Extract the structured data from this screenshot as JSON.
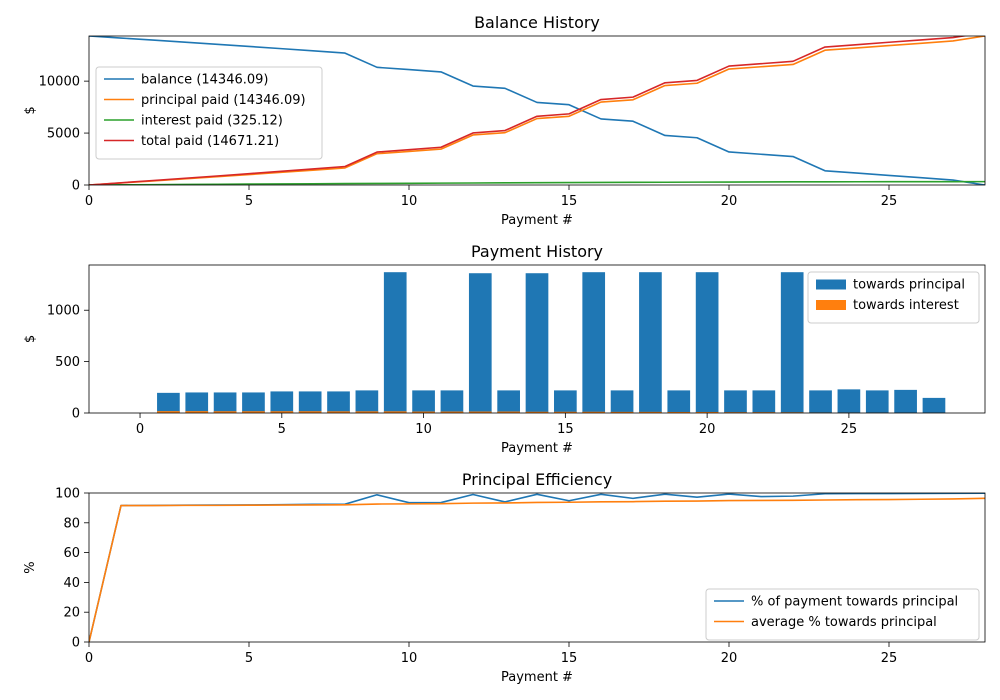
{
  "chart_data": [
    {
      "type": "line",
      "title": "Balance History",
      "xlabel": "Payment #",
      "ylabel": "$",
      "xlim": [
        0,
        28
      ],
      "ylim": [
        0,
        14346.09
      ],
      "xticks": [
        0,
        5,
        10,
        15,
        20,
        25
      ],
      "yticks": [
        0,
        5000,
        10000
      ],
      "legend_position": "center-left",
      "x": [
        0,
        1,
        2,
        3,
        4,
        5,
        6,
        7,
        8,
        9,
        10,
        11,
        12,
        13,
        14,
        15,
        16,
        17,
        18,
        19,
        20,
        21,
        22,
        23,
        24,
        25,
        26,
        27,
        28
      ],
      "series": [
        {
          "name": "balance (14346.09)",
          "color": "#1f77b4",
          "values": [
            14346.09,
            14150,
            13950,
            13750,
            13550,
            13340,
            13130,
            12920,
            12700,
            11330,
            11110,
            10890,
            9530,
            9310,
            7950,
            7730,
            6360,
            6140,
            4770,
            4550,
            3180,
            2960,
            2740,
            1370,
            1150,
            920,
            700,
            475,
            0
          ]
        },
        {
          "name": "principal paid (14346.09)",
          "color": "#ff7f0e",
          "values": [
            0,
            196,
            396,
            596,
            796,
            1006,
            1216,
            1426,
            1646,
            3016,
            3236,
            3456,
            4816,
            5036,
            6396,
            6616,
            7986,
            8206,
            9576,
            9796,
            11166,
            11386,
            11606,
            12976,
            13196,
            13426,
            13646,
            13871,
            14346.09
          ]
        },
        {
          "name": "interest paid (325.12)",
          "color": "#2ca02c",
          "values": [
            0,
            18,
            36,
            53,
            70,
            87,
            104,
            120,
            136,
            152,
            166,
            180,
            194,
            208,
            220,
            232,
            244,
            255,
            266,
            276,
            286,
            294,
            302,
            309,
            314,
            318,
            321,
            323,
            325.12
          ]
        },
        {
          "name": "total paid (14671.21)",
          "color": "#d62728",
          "values": [
            0,
            214,
            432,
            649,
            866,
            1093,
            1320,
            1546,
            1782,
            3168,
            3402,
            3636,
            5010,
            5244,
            6616,
            6848,
            8230,
            8461,
            9842,
            10072,
            11452,
            11680,
            11908,
            13285,
            13510,
            13744,
            13967,
            14194,
            14671.21
          ]
        }
      ]
    },
    {
      "type": "bar",
      "stacked": true,
      "title": "Payment History",
      "xlabel": "Payment #",
      "ylabel": "$",
      "xlim": [
        -1.8,
        29.8
      ],
      "ylim": [
        0,
        1440
      ],
      "xticks": [
        0,
        5,
        10,
        15,
        20,
        25
      ],
      "yticks": [
        0,
        500,
        1000
      ],
      "legend_position": "upper-right",
      "x": [
        1,
        2,
        3,
        4,
        5,
        6,
        7,
        8,
        9,
        10,
        11,
        12,
        13,
        14,
        15,
        16,
        17,
        18,
        19,
        20,
        21,
        22,
        23,
        24,
        25,
        26,
        27,
        28
      ],
      "series": [
        {
          "name": "towards principal",
          "color": "#1f77b4",
          "values": [
            196,
            200,
            200,
            200,
            210,
            210,
            210,
            220,
            1370,
            220,
            220,
            1360,
            220,
            1360,
            220,
            1370,
            220,
            1370,
            220,
            1370,
            220,
            220,
            1370,
            220,
            230,
            220,
            225,
            147
          ]
        },
        {
          "name": "towards interest",
          "color": "#ff7f0e",
          "values": [
            18,
            18,
            17,
            17,
            17,
            17,
            16,
            16,
            16,
            14,
            14,
            14,
            14,
            12,
            12,
            12,
            11,
            11,
            10,
            10,
            8,
            8,
            7,
            5,
            4,
            3,
            2,
            2
          ]
        }
      ]
    },
    {
      "type": "line",
      "title": "Principal Efficiency",
      "xlabel": "Payment #",
      "ylabel": "%",
      "xlim": [
        0,
        28
      ],
      "ylim": [
        0,
        100
      ],
      "xticks": [
        0,
        5,
        10,
        15,
        20,
        25
      ],
      "yticks": [
        0,
        20,
        40,
        60,
        80,
        100
      ],
      "legend_position": "lower-right",
      "x": [
        0,
        1,
        2,
        3,
        4,
        5,
        6,
        7,
        8,
        9,
        10,
        11,
        12,
        13,
        14,
        15,
        16,
        17,
        18,
        19,
        20,
        21,
        22,
        23,
        24,
        25,
        26,
        27,
        28
      ],
      "series": [
        {
          "name": "% of payment towards principal",
          "color": "#1f77b4",
          "values": [
            0,
            91.6,
            91.7,
            91.8,
            91.9,
            92.0,
            92.2,
            92.4,
            92.5,
            98.8,
            93.5,
            93.6,
            99.0,
            94.0,
            99.1,
            94.8,
            99.1,
            96.4,
            99.2,
            97.2,
            99.3,
            97.6,
            97.9,
            99.5,
            99.6,
            99.6,
            99.7,
            99.8,
            99.9
          ]
        },
        {
          "name": "average % towards principal",
          "color": "#ff7f0e",
          "values": [
            0,
            91.6,
            91.6,
            91.7,
            91.7,
            91.8,
            91.9,
            92.0,
            92.1,
            92.6,
            92.7,
            92.8,
            93.2,
            93.3,
            93.7,
            93.8,
            94.1,
            94.2,
            94.5,
            94.6,
            94.9,
            95.0,
            95.1,
            95.3,
            95.5,
            95.6,
            95.8,
            96.0,
            96.4
          ]
        }
      ]
    }
  ]
}
